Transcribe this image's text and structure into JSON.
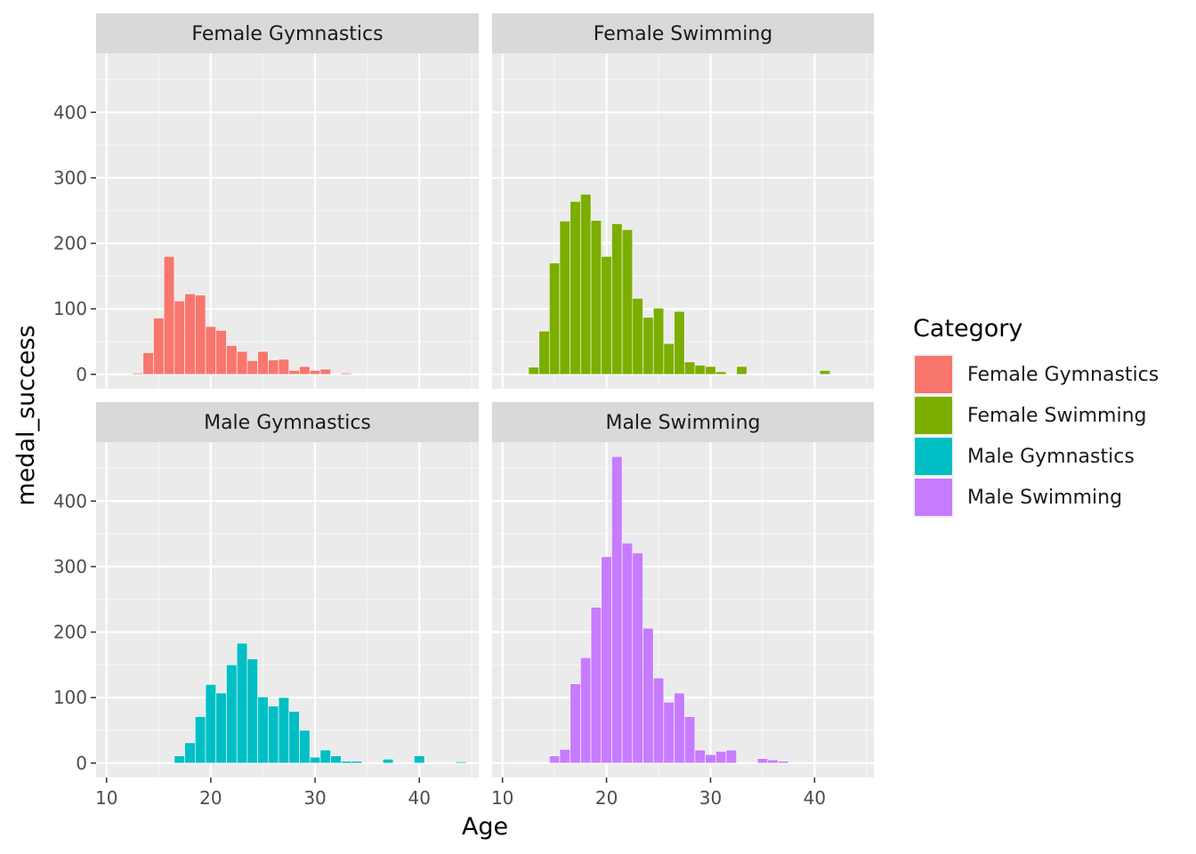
{
  "chart_data": {
    "type": "bar",
    "chart_kind": "faceted histogram",
    "xlabel": "Age",
    "ylabel": "medal_success",
    "xlim": [
      9,
      45.7
    ],
    "ylim": [
      -22,
      490
    ],
    "x_ticks": [
      10,
      20,
      30,
      40
    ],
    "y_ticks": [
      0,
      100,
      200,
      300,
      400
    ],
    "bin_width": 1,
    "grid": true,
    "legend": {
      "title": "Category",
      "placement": "right",
      "entries": [
        "Female Gymnastics",
        "Female Swimming",
        "Male Gymnastics",
        "Male Swimming"
      ]
    },
    "facets": [
      {
        "label": "Female Gymnastics",
        "color": "#F8766D",
        "bars": [
          {
            "x": 13,
            "y": 2
          },
          {
            "x": 14,
            "y": 33
          },
          {
            "x": 15,
            "y": 86
          },
          {
            "x": 16,
            "y": 180
          },
          {
            "x": 17,
            "y": 112
          },
          {
            "x": 18,
            "y": 123
          },
          {
            "x": 19,
            "y": 121
          },
          {
            "x": 20,
            "y": 73
          },
          {
            "x": 21,
            "y": 67
          },
          {
            "x": 22,
            "y": 44
          },
          {
            "x": 23,
            "y": 35
          },
          {
            "x": 24,
            "y": 21
          },
          {
            "x": 25,
            "y": 35
          },
          {
            "x": 26,
            "y": 22
          },
          {
            "x": 27,
            "y": 23
          },
          {
            "x": 28,
            "y": 6
          },
          {
            "x": 29,
            "y": 12
          },
          {
            "x": 30,
            "y": 6
          },
          {
            "x": 31,
            "y": 8
          },
          {
            "x": 33,
            "y": 2
          }
        ]
      },
      {
        "label": "Female Swimming",
        "color": "#7CAE00",
        "bars": [
          {
            "x": 13,
            "y": 11
          },
          {
            "x": 14,
            "y": 66
          },
          {
            "x": 15,
            "y": 170
          },
          {
            "x": 16,
            "y": 234
          },
          {
            "x": 17,
            "y": 264
          },
          {
            "x": 18,
            "y": 275
          },
          {
            "x": 19,
            "y": 235
          },
          {
            "x": 20,
            "y": 180
          },
          {
            "x": 21,
            "y": 230
          },
          {
            "x": 22,
            "y": 221
          },
          {
            "x": 23,
            "y": 116
          },
          {
            "x": 24,
            "y": 87
          },
          {
            "x": 25,
            "y": 101
          },
          {
            "x": 26,
            "y": 47
          },
          {
            "x": 27,
            "y": 96
          },
          {
            "x": 28,
            "y": 19
          },
          {
            "x": 29,
            "y": 14
          },
          {
            "x": 30,
            "y": 12
          },
          {
            "x": 31,
            "y": 4
          },
          {
            "x": 33,
            "y": 12
          },
          {
            "x": 41,
            "y": 6
          }
        ]
      },
      {
        "label": "Male Gymnastics",
        "color": "#00BFC4",
        "bars": [
          {
            "x": 17,
            "y": 11
          },
          {
            "x": 18,
            "y": 31
          },
          {
            "x": 19,
            "y": 71
          },
          {
            "x": 20,
            "y": 120
          },
          {
            "x": 21,
            "y": 107
          },
          {
            "x": 22,
            "y": 150
          },
          {
            "x": 23,
            "y": 183
          },
          {
            "x": 24,
            "y": 159
          },
          {
            "x": 25,
            "y": 101
          },
          {
            "x": 26,
            "y": 87
          },
          {
            "x": 27,
            "y": 100
          },
          {
            "x": 28,
            "y": 79
          },
          {
            "x": 29,
            "y": 50
          },
          {
            "x": 30,
            "y": 9
          },
          {
            "x": 31,
            "y": 20
          },
          {
            "x": 32,
            "y": 11
          },
          {
            "x": 33,
            "y": 3
          },
          {
            "x": 34,
            "y": 3
          },
          {
            "x": 37,
            "y": 6
          },
          {
            "x": 40,
            "y": 11
          },
          {
            "x": 44,
            "y": 2
          }
        ]
      },
      {
        "label": "Male Swimming",
        "color": "#C77CFF",
        "bars": [
          {
            "x": 15,
            "y": 11
          },
          {
            "x": 16,
            "y": 21
          },
          {
            "x": 17,
            "y": 121
          },
          {
            "x": 18,
            "y": 161
          },
          {
            "x": 19,
            "y": 238
          },
          {
            "x": 20,
            "y": 315
          },
          {
            "x": 21,
            "y": 468
          },
          {
            "x": 22,
            "y": 336
          },
          {
            "x": 23,
            "y": 321
          },
          {
            "x": 24,
            "y": 206
          },
          {
            "x": 25,
            "y": 130
          },
          {
            "x": 26,
            "y": 93
          },
          {
            "x": 27,
            "y": 107
          },
          {
            "x": 28,
            "y": 71
          },
          {
            "x": 29,
            "y": 20
          },
          {
            "x": 30,
            "y": 13
          },
          {
            "x": 31,
            "y": 18
          },
          {
            "x": 32,
            "y": 20
          },
          {
            "x": 35,
            "y": 7
          },
          {
            "x": 36,
            "y": 5
          },
          {
            "x": 37,
            "y": 3
          }
        ]
      }
    ]
  }
}
